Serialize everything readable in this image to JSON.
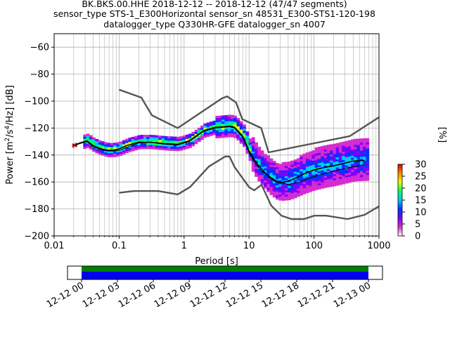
{
  "chart_data": {
    "type": "heatmap",
    "title_lines": [
      "BK.BKS.00.HHE   2018-12-12 -- 2018-12-12  (47/47 segments)",
      "sensor_type STS-1_E300Horizontal sensor_sn 48531_E300-STS1-120-198",
      "datalogger_type Q330HR-GFE datalogger_sn 4007"
    ],
    "xlabel": "Period [s]",
    "ylabel": "Power [m²/s⁴/Hz] [dB]",
    "x_scale": "log",
    "xlim": [
      0.01,
      1000
    ],
    "ylim": [
      -200,
      -50
    ],
    "x_ticks": [
      0.01,
      0.1,
      1,
      10,
      100,
      1000
    ],
    "x_tick_labels": [
      "0.01",
      "0.1",
      "1",
      "10",
      "100",
      "1000"
    ],
    "y_ticks": [
      -200,
      -180,
      -160,
      -140,
      -120,
      -100,
      -80,
      -60
    ],
    "y_tick_labels": [
      "−200",
      "−180",
      "−160",
      "−140",
      "−120",
      "−100",
      "−80",
      "−60"
    ],
    "grid": true,
    "colorbar": {
      "label": "[%]",
      "range": [
        0,
        30
      ],
      "ticks": [
        0,
        5,
        10,
        15,
        20,
        25,
        30
      ],
      "tick_labels": [
        "0",
        "5",
        "10",
        "15",
        "20",
        "25",
        "30"
      ],
      "colors": [
        "#ffffff",
        "#d42dd0",
        "#7b00ff",
        "#0033ff",
        "#00c8ff",
        "#00ff66",
        "#e6ff00",
        "#ff8800",
        "#e00000"
      ]
    },
    "series": [
      {
        "role": "nhnm",
        "color": "#555555",
        "x": [
          0.1,
          0.22,
          0.32,
          0.8,
          3.8,
          4.6,
          6.3,
          7.9,
          15.4,
          20,
          354.8,
          1000
        ],
        "y": [
          -91.5,
          -97.4,
          -110.5,
          -120,
          -98,
          -96.5,
          -101,
          -113.5,
          -120,
          -138,
          -126,
          -112
        ]
      },
      {
        "role": "nlnm",
        "color": "#555555",
        "x": [
          0.1,
          0.17,
          0.4,
          0.8,
          1.24,
          2.4,
          4.3,
          5,
          6,
          10,
          12,
          15.6,
          21.9,
          31.6,
          45,
          70,
          101,
          154,
          328,
          600,
          1000
        ],
        "y": [
          -168,
          -166.7,
          -166.7,
          -169.2,
          -163.7,
          -148.6,
          -141.1,
          -141.1,
          -149,
          -163.8,
          -166.2,
          -162.1,
          -177.5,
          -185,
          -187.5,
          -187.5,
          -185,
          -185,
          -187.5,
          -184.4,
          -178
        ]
      },
      {
        "role": "mean",
        "color": "#000000",
        "x": [
          0.02,
          0.025,
          0.032,
          0.04,
          0.05,
          0.065,
          0.08,
          0.1,
          0.13,
          0.2,
          0.3,
          0.5,
          0.8,
          1.2,
          2,
          3,
          4,
          5,
          6,
          8,
          10,
          13,
          16,
          20,
          25,
          30,
          40,
          50,
          70,
          100,
          150,
          200,
          300,
          400,
          600
        ],
        "y": [
          -133,
          -131,
          -129.5,
          -133,
          -135,
          -136.5,
          -136.5,
          -135.5,
          -133,
          -130.5,
          -130.5,
          -131.5,
          -132,
          -129.5,
          -122,
          -119.5,
          -119,
          -118.5,
          -119.5,
          -126,
          -137,
          -146,
          -151,
          -156,
          -159.5,
          -160.5,
          -159.5,
          -157.5,
          -154,
          -151,
          -149,
          -148,
          -146,
          -144.5,
          -144
        ]
      },
      {
        "role": "mode",
        "color": "#000000",
        "x": [
          0.02,
          0.025,
          0.032,
          0.04,
          0.05,
          0.065,
          0.08,
          0.1,
          0.13,
          0.2,
          0.3,
          0.5,
          0.8,
          1.2,
          2,
          3,
          4,
          5,
          6,
          8,
          10,
          13,
          16,
          20,
          25,
          30,
          40,
          60,
          100,
          200,
          600
        ],
        "y": [
          -133,
          -131.5,
          -130,
          -134,
          -135.5,
          -137,
          -137,
          -136.5,
          -134.5,
          -131,
          -130.5,
          -132,
          -132.5,
          -130,
          -122.5,
          -120,
          -119.5,
          -119,
          -120,
          -127,
          -138,
          -147.5,
          -152.5,
          -155.5,
          -158.5,
          -160,
          -162,
          -160,
          -156,
          -152,
          -147
        ]
      }
    ],
    "time_axis": {
      "tick_labels": [
        "12-12 00",
        "12-12 03",
        "12-12 06",
        "12-12 09",
        "12-12 12",
        "12-12 15",
        "12-12 18",
        "12-12 21",
        "12-13 00"
      ],
      "data_coverage_color": "#0000ee",
      "gap_coverage_color": "#008000"
    }
  }
}
